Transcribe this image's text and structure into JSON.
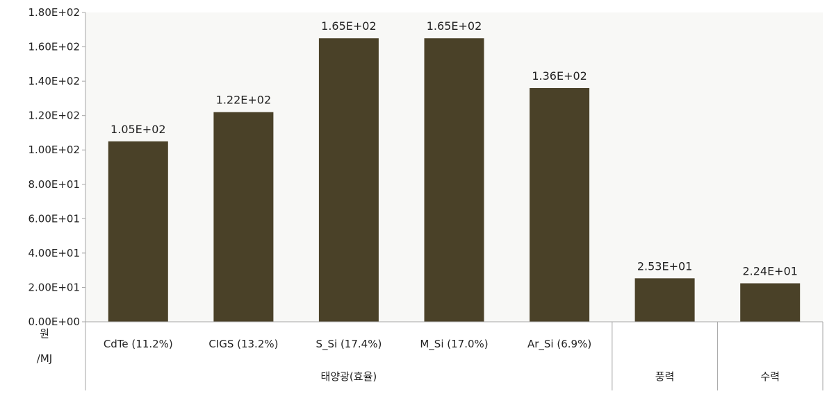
{
  "colors": {
    "bar": "#4a4128",
    "plot_background": "#f8f8f6",
    "outer_background": "#ffffff",
    "axis": "#a6a6a6"
  },
  "y_unit": {
    "line1": "원",
    "line2": "/MJ"
  },
  "chart_data": {
    "type": "bar",
    "categories": [
      "CdTe (11.2%)",
      "CIGS (13.2%)",
      "S_Si (17.4%)",
      "M_Si (17.0%)",
      "Ar_Si (6.9%)",
      "",
      ""
    ],
    "values": [
      105,
      122,
      165,
      165,
      136,
      25.3,
      22.4
    ],
    "data_labels": [
      "1.05E+02",
      "1.22E+02",
      "1.65E+02",
      "1.65E+02",
      "1.36E+02",
      "2.53E+01",
      "2.24E+01"
    ],
    "groups": [
      {
        "label": "태양광(효율)",
        "start": 0,
        "end": 4
      },
      {
        "label": "풍력",
        "start": 5,
        "end": 5
      },
      {
        "label": "수력",
        "start": 6,
        "end": 6
      }
    ],
    "ylim": [
      0,
      180
    ],
    "yticks": [
      0,
      20,
      40,
      60,
      80,
      100,
      120,
      140,
      160,
      180
    ],
    "ytick_labels": [
      "0.00E+00",
      "2.00E+01",
      "4.00E+01",
      "6.00E+01",
      "8.00E+01",
      "1.00E+02",
      "1.20E+02",
      "1.40E+02",
      "1.60E+02",
      "1.80E+02"
    ],
    "grid": false,
    "legend": "none"
  }
}
